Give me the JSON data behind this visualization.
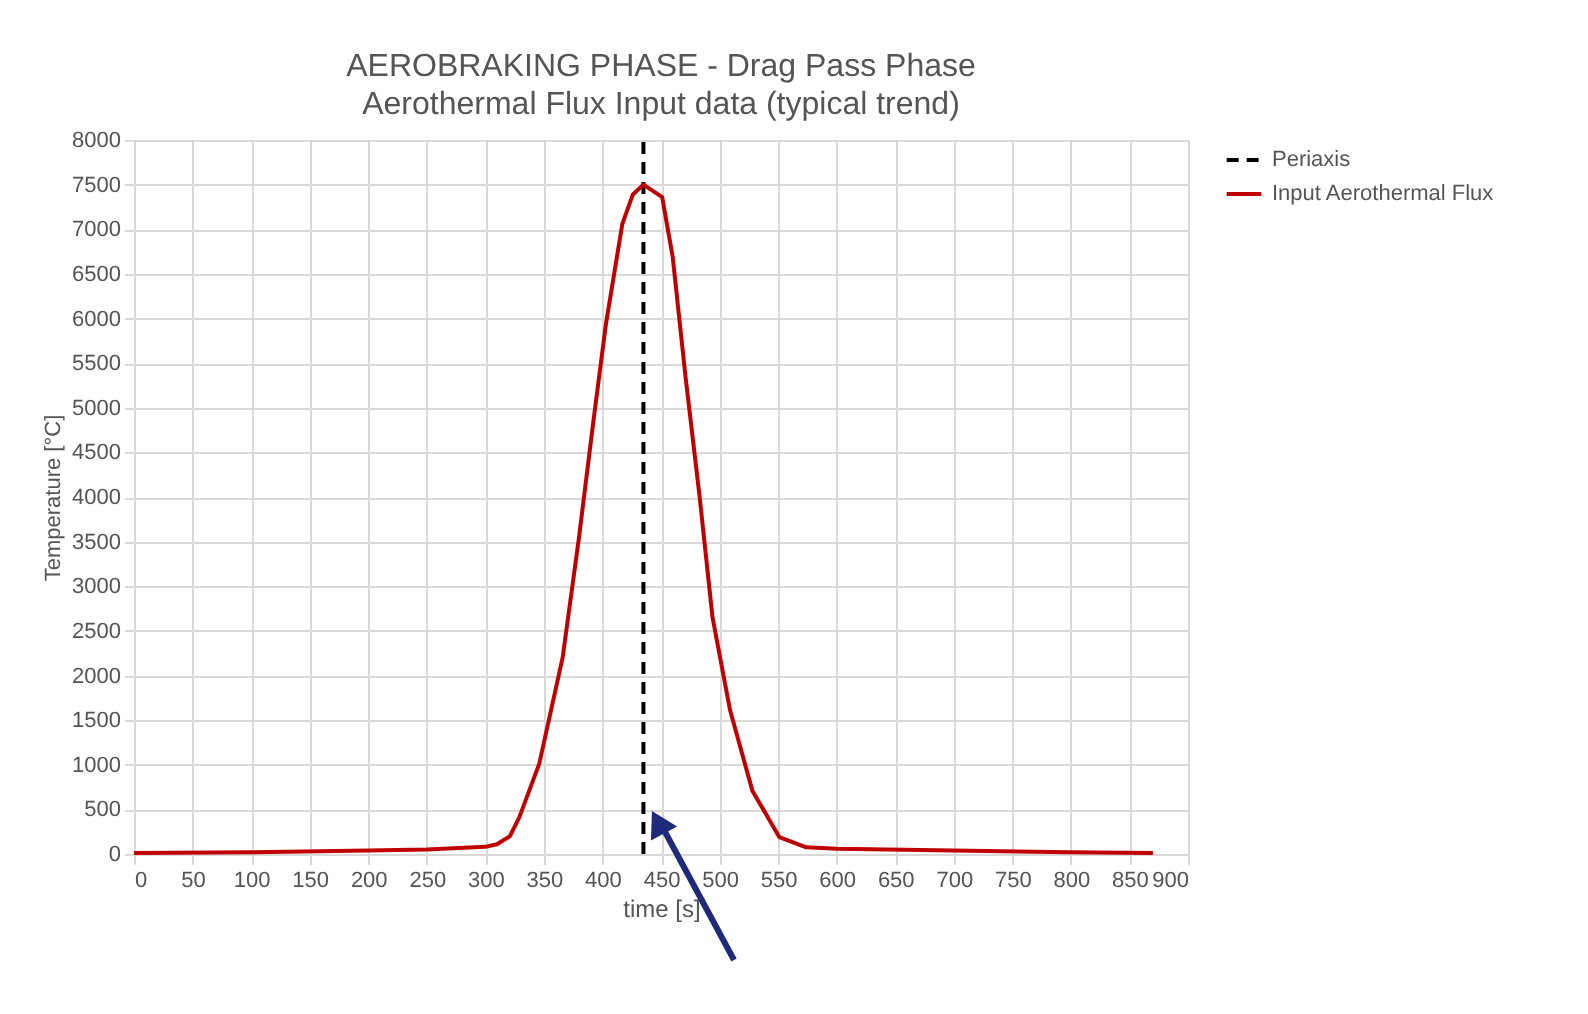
{
  "chart_data": {
    "type": "line",
    "title": "AEROBRAKING PHASE - Drag Pass Phase",
    "subtitle": "Aerothermal Flux Input data (typical trend)",
    "xlabel": "time [s]",
    "ylabel": "Temperature [°C]",
    "xlim": [
      0,
      900
    ],
    "xticks": [
      0,
      50,
      100,
      150,
      200,
      250,
      300,
      350,
      400,
      450,
      500,
      550,
      600,
      650,
      700,
      750,
      800,
      850,
      900
    ],
    "ylim": [
      0,
      8000
    ],
    "yticks": [
      0,
      500,
      1000,
      1500,
      2000,
      2500,
      3000,
      3500,
      4000,
      4500,
      5000,
      5500,
      6000,
      6500,
      7000,
      7500,
      8000
    ],
    "grid": true,
    "legend": "right",
    "series": [
      {
        "name": "Periaxis",
        "type": "line",
        "color": "#000000",
        "line_style": "dashed",
        "x": [
          435,
          435
        ],
        "values": [
          0,
          8000
        ]
      },
      {
        "name": "Input Aerothermal Flux",
        "type": "line",
        "color": "#c00000",
        "line_style": "solid",
        "x": [
          0,
          100,
          200,
          250,
          300,
          310,
          321,
          329,
          346,
          366,
          380,
          392,
          403,
          417,
          426,
          435,
          451,
          460,
          471,
          483,
          494,
          509,
          528,
          551,
          574,
          600,
          700,
          800,
          870
        ],
        "values": [
          10,
          20,
          40,
          50,
          80,
          110,
          200,
          410,
          1010,
          2200,
          3550,
          4820,
          5940,
          7060,
          7390,
          7500,
          7360,
          6690,
          5340,
          4000,
          2650,
          1610,
          710,
          190,
          75,
          60,
          40,
          20,
          10
        ]
      }
    ]
  }
}
